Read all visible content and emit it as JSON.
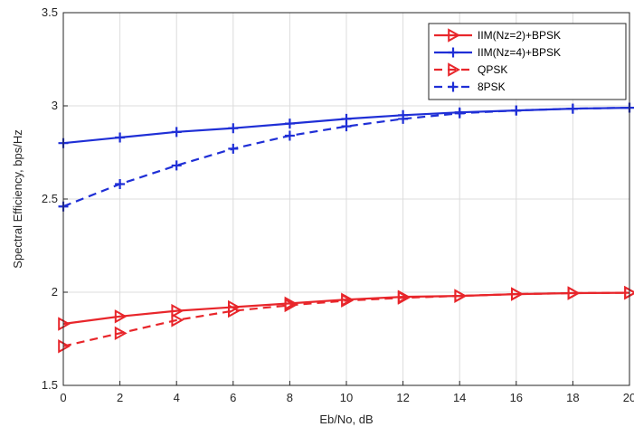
{
  "chart_data": {
    "type": "line",
    "title": "",
    "xlabel": "Eb/No, dB",
    "ylabel": "Spectral Efficiency, bps/Hz",
    "xlim": [
      0,
      20
    ],
    "ylim": [
      1.5,
      3.5
    ],
    "xticks": [
      "0",
      "2",
      "4",
      "6",
      "8",
      "10",
      "12",
      "14",
      "16",
      "18",
      "20"
    ],
    "yticks": [
      "1.5",
      "2",
      "2.5",
      "3",
      "3.5"
    ],
    "grid": true,
    "legend_position": "top-right",
    "x": [
      0,
      2,
      4,
      6,
      8,
      10,
      12,
      14,
      16,
      18,
      20
    ],
    "series": [
      {
        "name": "IIM(Nz=2)+BPSK",
        "color": "#e8262b",
        "dash": "solid",
        "marker": "triangle-right",
        "values": [
          1.83,
          1.87,
          1.9,
          1.92,
          1.94,
          1.96,
          1.975,
          1.98,
          1.99,
          1.995,
          1.997
        ]
      },
      {
        "name": "IIM(Nz=4)+BPSK",
        "color": "#1f2fd6",
        "dash": "solid",
        "marker": "plus",
        "values": [
          2.8,
          2.83,
          2.86,
          2.88,
          2.905,
          2.93,
          2.95,
          2.965,
          2.975,
          2.985,
          2.99
        ]
      },
      {
        "name": "QPSK",
        "color": "#e8262b",
        "dash": "dashed",
        "marker": "triangle-right",
        "values": [
          1.71,
          1.78,
          1.85,
          1.9,
          1.93,
          1.955,
          1.97,
          1.98,
          1.99,
          1.995,
          1.997
        ]
      },
      {
        "name": "8PSK",
        "color": "#1f2fd6",
        "dash": "dashed",
        "marker": "plus",
        "values": [
          2.46,
          2.58,
          2.68,
          2.77,
          2.84,
          2.89,
          2.93,
          2.96,
          2.975,
          2.985,
          2.99
        ]
      }
    ]
  }
}
